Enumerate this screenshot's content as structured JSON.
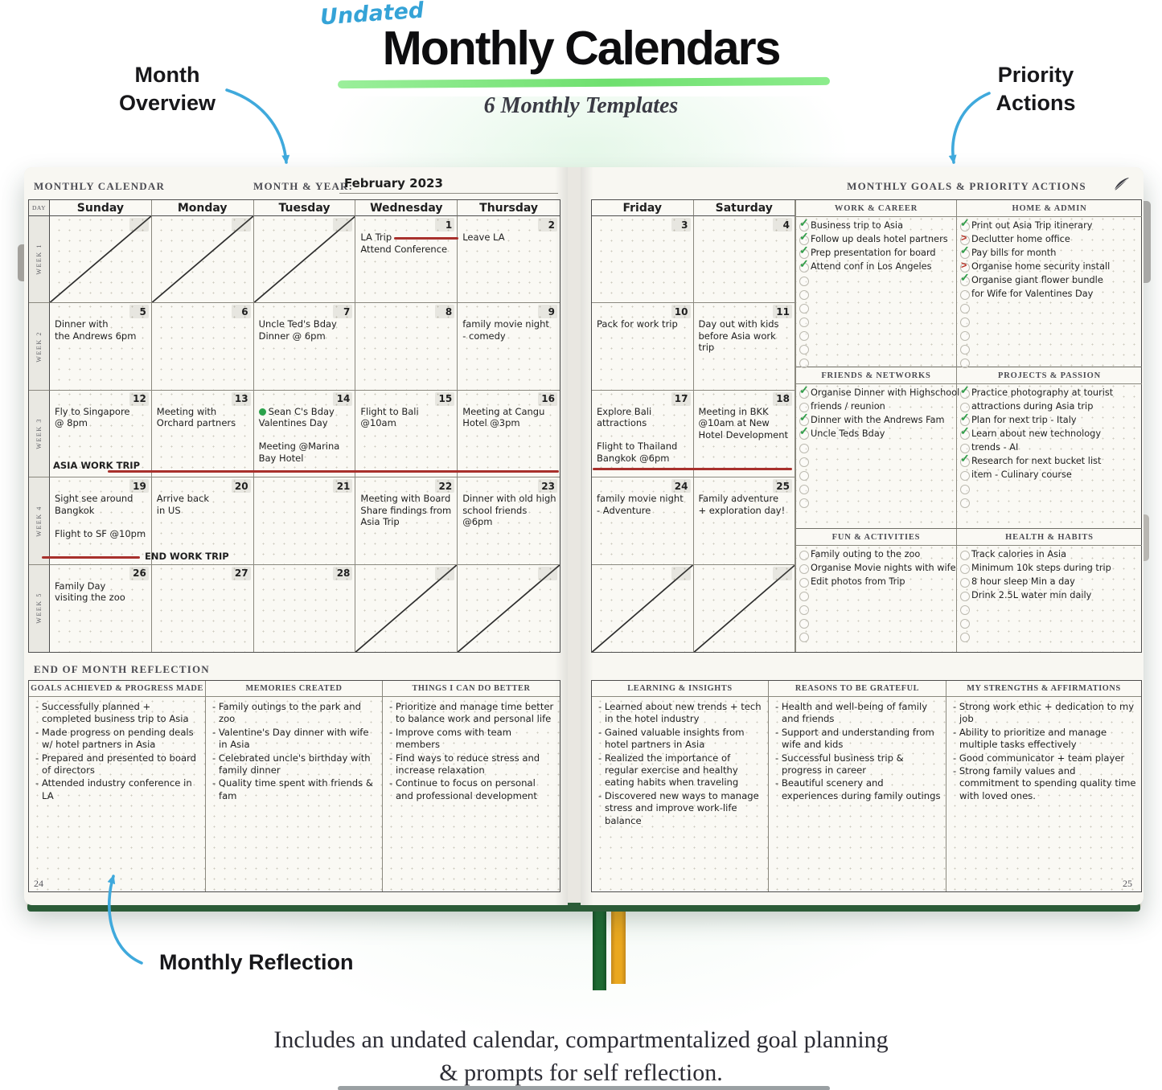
{
  "header": {
    "undated": "Undated",
    "title": "Monthly Calendars",
    "subtitle": "6 Monthly Templates"
  },
  "callouts": {
    "month_overview": "Month\nOverview",
    "priority_actions": "Priority\nActions",
    "monthly_reflection": "Monthly Reflection"
  },
  "caption": {
    "line1": "Includes an undated calendar, compartmentalized goal planning",
    "line2": "& prompts for self reflection."
  },
  "left_page": {
    "label": "MONTHLY CALENDAR",
    "month_year_label": "MONTH & YEAR:",
    "month_year_value": "February 2023",
    "day_col_label": "DAY",
    "page_number": "24",
    "day_headers": [
      "Sunday",
      "Monday",
      "Tuesday",
      "Wednesday",
      "Thursday"
    ],
    "week_labels": [
      "WEEK 1",
      "WEEK 2",
      "WEEK 3",
      "WEEK 4",
      "WEEK 5"
    ],
    "markers": {
      "asia_work_trip": "ASIA WORK TRIP",
      "end_work_trip": "END WORK TRIP"
    },
    "rows": [
      [
        {
          "crossed": true
        },
        {
          "crossed": true
        },
        {
          "crossed": true
        },
        {
          "num": "1",
          "text": "LA Trip\nAttend Conference"
        },
        {
          "num": "2",
          "text": "Leave LA"
        }
      ],
      [
        {
          "num": "5",
          "text": "Dinner with\nthe Andrews 6pm"
        },
        {
          "num": "6"
        },
        {
          "num": "7",
          "text": "Uncle Ted's Bday\nDinner @ 6pm"
        },
        {
          "num": "8"
        },
        {
          "num": "9",
          "text": "family movie night\n- comedy"
        }
      ],
      [
        {
          "num": "12",
          "text": "Fly to Singapore\n@ 8pm"
        },
        {
          "num": "13",
          "text": "Meeting with\nOrchard partners"
        },
        {
          "num": "14",
          "dot": true,
          "text": "Sean C's Bday\nValentines Day\n\nMeeting @Marina\nBay Hotel"
        },
        {
          "num": "15",
          "text": "Flight to Bali\n@10am"
        },
        {
          "num": "16",
          "text": "Meeting at Cangu\nHotel @3pm"
        }
      ],
      [
        {
          "num": "19",
          "text": "Sight see around\nBangkok\n\nFlight to SF @10pm"
        },
        {
          "num": "20",
          "text": "Arrive back\nin US"
        },
        {
          "num": "21"
        },
        {
          "num": "22",
          "text": "Meeting with Board\nShare findings from\nAsia Trip"
        },
        {
          "num": "23",
          "text": "Dinner with old high\nschool friends @6pm"
        }
      ],
      [
        {
          "num": "26",
          "text": "Family Day\nvisiting the zoo"
        },
        {
          "num": "27"
        },
        {
          "num": "28"
        },
        {
          "crossed": true
        },
        {
          "crossed": true
        }
      ]
    ]
  },
  "right_page": {
    "page_number": "25",
    "day_headers": [
      "Friday",
      "Saturday"
    ],
    "rows": [
      [
        {
          "num": "3"
        },
        {
          "num": "4"
        }
      ],
      [
        {
          "num": "10",
          "text": "Pack for work trip"
        },
        {
          "num": "11",
          "text": "Day out with kids\nbefore Asia work trip"
        }
      ],
      [
        {
          "num": "17",
          "text": "Explore Bali\nattractions\n\nFlight to Thailand\nBangkok @6pm"
        },
        {
          "num": "18",
          "text": "Meeting in BKK\n@10am at New\nHotel Development"
        }
      ],
      [
        {
          "num": "24",
          "text": "family movie night\n- Adventure"
        },
        {
          "num": "25",
          "text": "Family adventure\n+ exploration day!"
        }
      ],
      [
        {
          "crossed": true
        },
        {
          "crossed": true
        }
      ]
    ]
  },
  "goals": {
    "title": "MONTHLY GOALS & PRIORITY ACTIONS",
    "sections": [
      {
        "title": "WORK & CAREER",
        "lines": [
          {
            "mark": "check",
            "text": "Business trip to Asia"
          },
          {
            "mark": "check",
            "text": "Follow up deals hotel partners"
          },
          {
            "mark": "check",
            "text": "Prep presentation for board"
          },
          {
            "mark": "check",
            "text": "Attend conf in Los Angeles"
          },
          {
            "mark": "none",
            "text": ""
          },
          {
            "mark": "none",
            "text": ""
          },
          {
            "mark": "none",
            "text": ""
          },
          {
            "mark": "none",
            "text": ""
          },
          {
            "mark": "none",
            "text": ""
          },
          {
            "mark": "none",
            "text": ""
          },
          {
            "mark": "none",
            "text": ""
          }
        ]
      },
      {
        "title": "HOME & ADMIN",
        "lines": [
          {
            "mark": "check",
            "text": "Print out Asia Trip itinerary"
          },
          {
            "mark": "arrow",
            "text": "Declutter home office"
          },
          {
            "mark": "check",
            "text": "Pay bills for month"
          },
          {
            "mark": "arrow",
            "text": "Organise home security install"
          },
          {
            "mark": "check",
            "text": "Organise giant flower bundle"
          },
          {
            "mark": "none",
            "text": "for Wife for Valentines Day"
          },
          {
            "mark": "none",
            "text": ""
          },
          {
            "mark": "none",
            "text": ""
          },
          {
            "mark": "none",
            "text": ""
          },
          {
            "mark": "none",
            "text": ""
          },
          {
            "mark": "none",
            "text": ""
          }
        ]
      },
      {
        "title": "FRIENDS & NETWORKS",
        "lines": [
          {
            "mark": "check",
            "text": "Organise Dinner with Highschool"
          },
          {
            "mark": "none",
            "text": "friends / reunion"
          },
          {
            "mark": "check",
            "text": "Dinner with the Andrews Fam"
          },
          {
            "mark": "check",
            "text": "Uncle Teds Bday"
          },
          {
            "mark": "none",
            "text": ""
          },
          {
            "mark": "none",
            "text": ""
          },
          {
            "mark": "none",
            "text": ""
          },
          {
            "mark": "none",
            "text": ""
          },
          {
            "mark": "none",
            "text": ""
          }
        ]
      },
      {
        "title": "PROJECTS & PASSION",
        "lines": [
          {
            "mark": "check",
            "text": "Practice photography at tourist"
          },
          {
            "mark": "none",
            "text": "attractions during Asia trip"
          },
          {
            "mark": "check",
            "text": "Plan for next trip - Italy"
          },
          {
            "mark": "check",
            "text": "Learn about new technology"
          },
          {
            "mark": "none",
            "text": "trends - AI"
          },
          {
            "mark": "check",
            "text": "Research for next bucket list"
          },
          {
            "mark": "none",
            "text": "item - Culinary course"
          },
          {
            "mark": "none",
            "text": ""
          },
          {
            "mark": "none",
            "text": ""
          }
        ]
      },
      {
        "title": "FUN & ACTIVITIES",
        "lines": [
          {
            "mark": "none",
            "text": "Family outing to the zoo"
          },
          {
            "mark": "none",
            "text": "Organise Movie nights with wife"
          },
          {
            "mark": "none",
            "text": "Edit photos from Trip"
          },
          {
            "mark": "none",
            "text": ""
          },
          {
            "mark": "none",
            "text": ""
          },
          {
            "mark": "none",
            "text": ""
          },
          {
            "mark": "none",
            "text": ""
          }
        ]
      },
      {
        "title": "HEALTH & HABITS",
        "lines": [
          {
            "mark": "none",
            "text": "Track calories in Asia"
          },
          {
            "mark": "none",
            "text": "Minimum 10k steps during trip"
          },
          {
            "mark": "none",
            "text": "8 hour sleep Min a day"
          },
          {
            "mark": "none",
            "text": "Drink 2.5L water min daily"
          },
          {
            "mark": "none",
            "text": ""
          },
          {
            "mark": "none",
            "text": ""
          },
          {
            "mark": "none",
            "text": ""
          }
        ]
      }
    ]
  },
  "reflection": {
    "label": "END OF MONTH REFLECTION",
    "left_columns": [
      {
        "title": "GOALS ACHIEVED & PROGRESS MADE",
        "items": [
          "- Successfully planned + completed business trip to Asia",
          "- Made progress on pending deals w/ hotel partners in Asia",
          "- Prepared and presented to board of directors",
          "- Attended industry conference in LA"
        ]
      },
      {
        "title": "MEMORIES CREATED",
        "items": [
          "- Family outings to the park and zoo",
          "- Valentine's Day dinner with wife in Asia",
          "- Celebrated uncle's birthday with family dinner",
          "- Quality time spent with friends & fam"
        ]
      },
      {
        "title": "THINGS I CAN DO BETTER",
        "items": [
          "- Prioritize and manage time better to balance work and personal life",
          "- Improve coms with team members",
          "- Find ways to reduce stress and increase relaxation",
          "- Continue to focus on personal and professional development"
        ]
      }
    ],
    "right_columns": [
      {
        "title": "LEARNING & INSIGHTS",
        "items": [
          "- Learned about new trends + tech in the hotel industry",
          "- Gained valuable insights from hotel partners in Asia",
          "- Realized the importance of regular exercise and healthy eating habits when traveling",
          "- Discovered new ways to manage stress and improve work-life balance"
        ]
      },
      {
        "title": "REASONS TO BE GRATEFUL",
        "items": [
          "- Health and well-being of family and friends",
          "- Support and understanding from wife and kids",
          "- Successful business trip & progress in career",
          "- Beautiful scenery and experiences during family outings"
        ]
      },
      {
        "title": "MY STRENGTHS & AFFIRMATIONS",
        "items": [
          "- Strong work ethic + dedication to my job",
          "- Ability to prioritize and manage multiple tasks effectively",
          "- Good communicator + team player",
          "- Strong family values and commitment to spending quality time with loved ones."
        ]
      }
    ]
  },
  "colors": {
    "accent_blue": "#3fa9dc",
    "underline_green": "#7ee87e",
    "check_green": "#2f9e48",
    "marker_red": "#a8302c",
    "ribbon_green": "#1e6a33",
    "ribbon_yellow": "#eaa81f"
  }
}
